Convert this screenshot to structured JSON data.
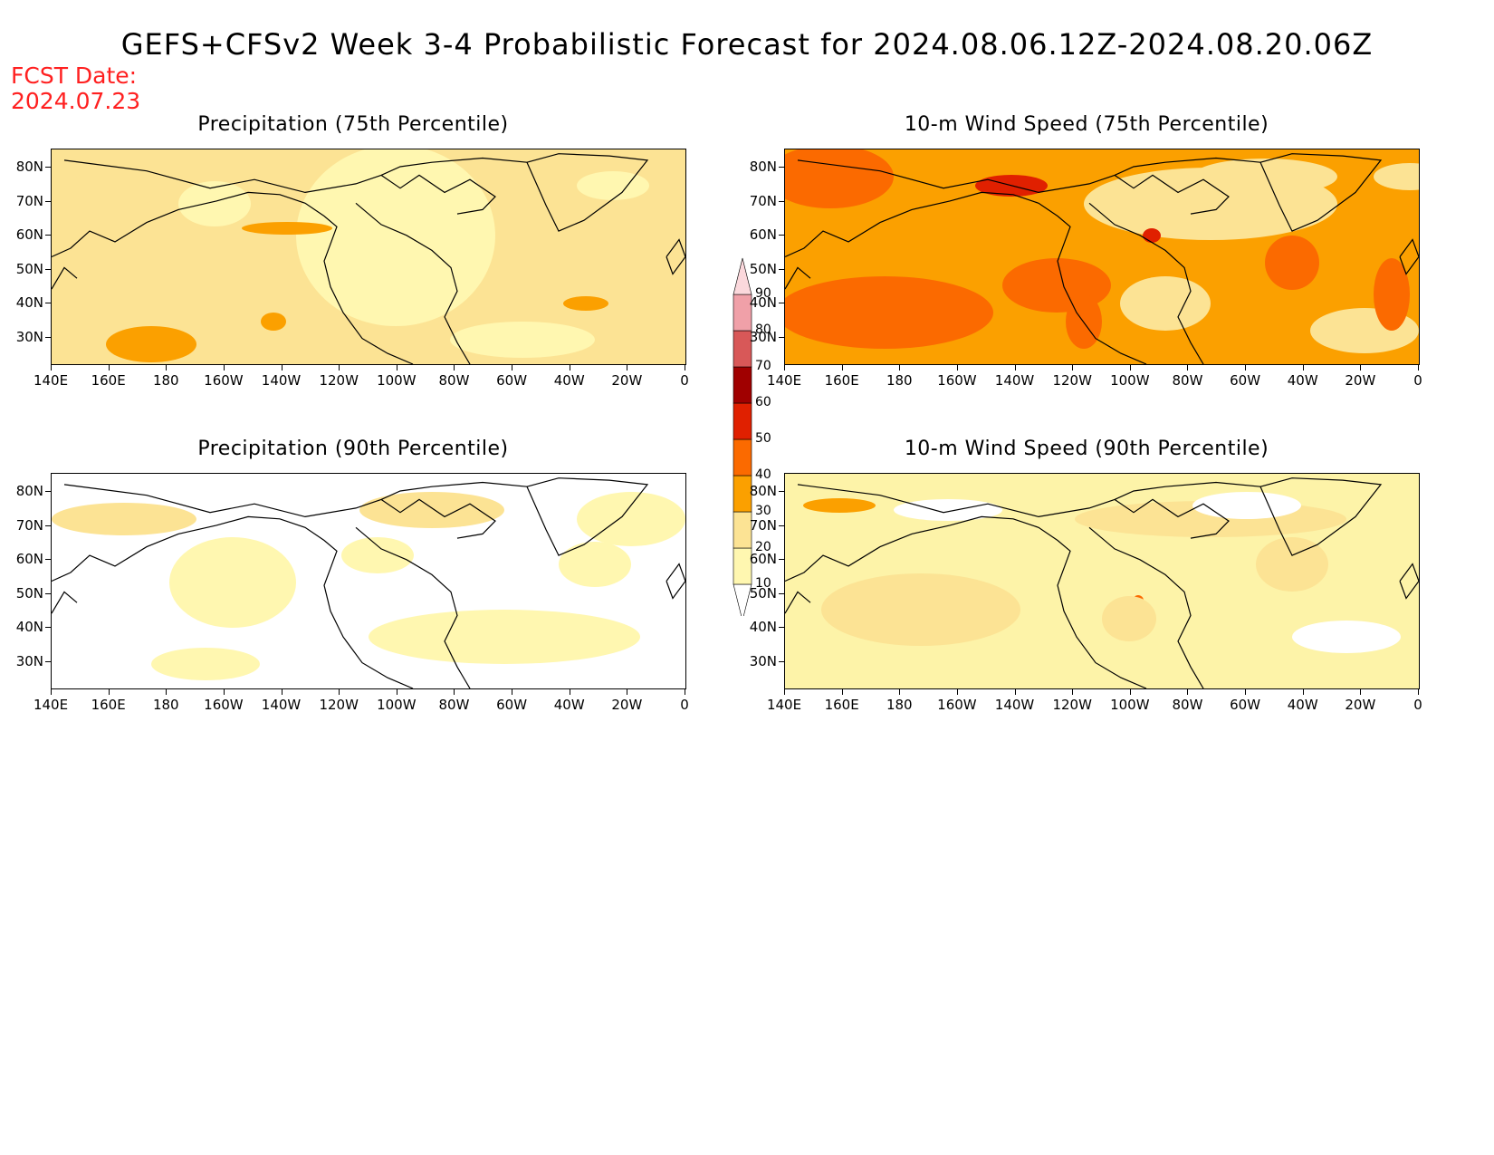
{
  "title": "GEFS+CFSv2 Week 3-4 Probabilistic Forecast for 2024.08.06.12Z-2024.08.20.06Z",
  "fcst_label": "FCST Date:",
  "fcst_date": "2024.07.23",
  "lat_labels": [
    "80N",
    "70N",
    "60N",
    "50N",
    "40N",
    "30N"
  ],
  "lon_labels": [
    "140E",
    "160E",
    "180",
    "160W",
    "140W",
    "120W",
    "100W",
    "80W",
    "60W",
    "40W",
    "20W",
    "0"
  ],
  "panels": [
    {
      "title": "Precipitation (75th Percentile)",
      "base_color": "#fce394"
    },
    {
      "title": "10-m Wind Speed (75th Percentile)",
      "base_color": "#fba000"
    },
    {
      "title": "Precipitation (90th Percentile)",
      "base_color": "#ffffff"
    },
    {
      "title": "10-m Wind Speed (90th Percentile)",
      "base_color": "#fdf3a8"
    }
  ],
  "colorbar": {
    "levels": [
      "10",
      "20",
      "30",
      "40",
      "50",
      "60",
      "70",
      "80",
      "90"
    ],
    "colors": [
      "#ffffff",
      "#fff7b0",
      "#fce394",
      "#fba000",
      "#fb6a00",
      "#e02000",
      "#a00000",
      "#d85858",
      "#f0a0a8",
      "#fbd8dc"
    ]
  }
}
